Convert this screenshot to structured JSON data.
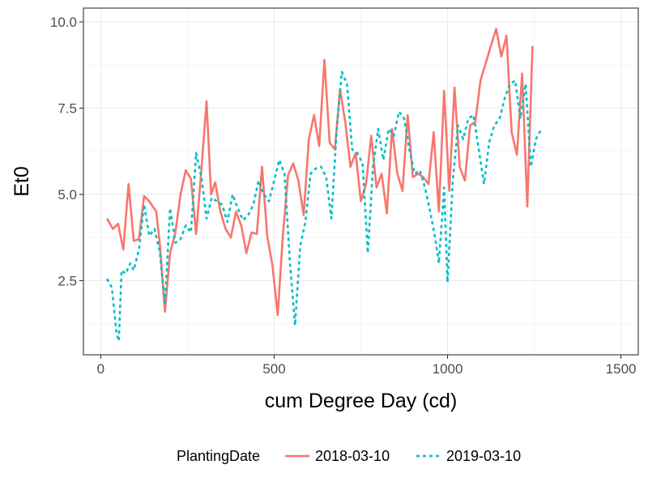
{
  "chart_data": {
    "type": "line",
    "xlabel": "cum Degree Day (cd)",
    "ylabel": "Et0",
    "xlim": [
      -50,
      1550
    ],
    "ylim": [
      0.35,
      10.4
    ],
    "x_ticks": [
      0,
      500,
      1000,
      1500
    ],
    "x_tick_labels": [
      "0",
      "500",
      "1000",
      "1500"
    ],
    "y_ticks": [
      2.5,
      5.0,
      7.5,
      10.0
    ],
    "y_tick_labels": [
      "2.5",
      "5.0",
      "7.5",
      "10.0"
    ],
    "grid": true,
    "legend": {
      "title": "PlantingDate",
      "position": "bottom"
    },
    "series": [
      {
        "name": "2018-03-10",
        "color": "#f8766d",
        "style": "solid",
        "points": [
          [
            18,
            4.3
          ],
          [
            35,
            4.0
          ],
          [
            50,
            4.15
          ],
          [
            65,
            3.4
          ],
          [
            80,
            5.3
          ],
          [
            95,
            3.65
          ],
          [
            110,
            3.7
          ],
          [
            125,
            4.95
          ],
          [
            140,
            4.8
          ],
          [
            160,
            4.5
          ],
          [
            170,
            3.6
          ],
          [
            185,
            1.6
          ],
          [
            200,
            3.3
          ],
          [
            215,
            3.9
          ],
          [
            230,
            5.0
          ],
          [
            245,
            5.7
          ],
          [
            260,
            5.45
          ],
          [
            275,
            3.85
          ],
          [
            290,
            5.7
          ],
          [
            305,
            7.7
          ],
          [
            318,
            5.0
          ],
          [
            330,
            5.35
          ],
          [
            345,
            4.5
          ],
          [
            360,
            4.0
          ],
          [
            375,
            3.75
          ],
          [
            390,
            4.5
          ],
          [
            405,
            4.1
          ],
          [
            420,
            3.3
          ],
          [
            435,
            3.9
          ],
          [
            450,
            3.85
          ],
          [
            465,
            5.8
          ],
          [
            480,
            3.8
          ],
          [
            495,
            2.95
          ],
          [
            510,
            1.5
          ],
          [
            525,
            3.8
          ],
          [
            540,
            5.55
          ],
          [
            555,
            5.9
          ],
          [
            570,
            5.4
          ],
          [
            585,
            4.4
          ],
          [
            600,
            6.6
          ],
          [
            615,
            7.3
          ],
          [
            630,
            6.4
          ],
          [
            645,
            8.9
          ],
          [
            660,
            6.5
          ],
          [
            675,
            6.3
          ],
          [
            690,
            8.05
          ],
          [
            705,
            7.1
          ],
          [
            720,
            5.8
          ],
          [
            735,
            6.2
          ],
          [
            750,
            4.8
          ],
          [
            765,
            5.3
          ],
          [
            780,
            6.7
          ],
          [
            795,
            5.2
          ],
          [
            810,
            5.6
          ],
          [
            825,
            4.45
          ],
          [
            840,
            6.9
          ],
          [
            855,
            5.6
          ],
          [
            870,
            5.1
          ],
          [
            885,
            7.3
          ],
          [
            900,
            5.5
          ],
          [
            915,
            5.6
          ],
          [
            930,
            5.5
          ],
          [
            945,
            5.3
          ],
          [
            960,
            6.8
          ],
          [
            975,
            4.5
          ],
          [
            990,
            8.0
          ],
          [
            1005,
            5.1
          ],
          [
            1020,
            8.1
          ],
          [
            1035,
            5.8
          ],
          [
            1050,
            5.4
          ],
          [
            1065,
            7.0
          ],
          [
            1080,
            7.1
          ],
          [
            1095,
            8.3
          ],
          [
            1110,
            8.8
          ],
          [
            1125,
            9.3
          ],
          [
            1140,
            9.8
          ],
          [
            1155,
            9.0
          ],
          [
            1170,
            9.6
          ],
          [
            1185,
            6.8
          ],
          [
            1200,
            6.15
          ],
          [
            1215,
            8.5
          ],
          [
            1230,
            4.65
          ],
          [
            1245,
            9.3
          ]
        ]
      },
      {
        "name": "2019-03-10",
        "color": "#00bfc4",
        "style": "dashed",
        "points": [
          [
            18,
            2.55
          ],
          [
            32,
            2.3
          ],
          [
            45,
            1.0
          ],
          [
            52,
            0.75
          ],
          [
            60,
            2.8
          ],
          [
            72,
            2.7
          ],
          [
            85,
            3.0
          ],
          [
            95,
            2.8
          ],
          [
            110,
            3.4
          ],
          [
            125,
            4.7
          ],
          [
            140,
            3.8
          ],
          [
            155,
            4.0
          ],
          [
            170,
            3.35
          ],
          [
            185,
            1.8
          ],
          [
            200,
            4.6
          ],
          [
            215,
            3.6
          ],
          [
            230,
            3.7
          ],
          [
            245,
            4.1
          ],
          [
            260,
            3.9
          ],
          [
            275,
            6.2
          ],
          [
            290,
            5.5
          ],
          [
            305,
            4.3
          ],
          [
            320,
            4.9
          ],
          [
            335,
            4.8
          ],
          [
            350,
            4.7
          ],
          [
            365,
            4.2
          ],
          [
            380,
            5.0
          ],
          [
            395,
            4.6
          ],
          [
            410,
            4.25
          ],
          [
            425,
            4.4
          ],
          [
            440,
            4.7
          ],
          [
            455,
            5.4
          ],
          [
            470,
            5.0
          ],
          [
            485,
            4.8
          ],
          [
            500,
            5.4
          ],
          [
            515,
            6.0
          ],
          [
            530,
            5.6
          ],
          [
            545,
            3.1
          ],
          [
            560,
            1.2
          ],
          [
            575,
            3.5
          ],
          [
            590,
            4.2
          ],
          [
            605,
            5.6
          ],
          [
            620,
            5.75
          ],
          [
            635,
            5.8
          ],
          [
            650,
            5.5
          ],
          [
            665,
            4.3
          ],
          [
            680,
            6.8
          ],
          [
            695,
            8.55
          ],
          [
            710,
            8.2
          ],
          [
            725,
            6.3
          ],
          [
            740,
            6.2
          ],
          [
            755,
            5.9
          ],
          [
            770,
            3.3
          ],
          [
            785,
            5.8
          ],
          [
            800,
            6.9
          ],
          [
            815,
            6.0
          ],
          [
            830,
            6.9
          ],
          [
            845,
            6.7
          ],
          [
            860,
            7.4
          ],
          [
            875,
            7.2
          ],
          [
            890,
            6.3
          ],
          [
            905,
            5.6
          ],
          [
            920,
            5.7
          ],
          [
            935,
            5.2
          ],
          [
            950,
            4.5
          ],
          [
            965,
            3.7
          ],
          [
            975,
            3.0
          ],
          [
            990,
            5.2
          ],
          [
            1000,
            2.45
          ],
          [
            1015,
            5.4
          ],
          [
            1030,
            7.0
          ],
          [
            1045,
            6.6
          ],
          [
            1060,
            7.2
          ],
          [
            1075,
            7.3
          ],
          [
            1090,
            6.3
          ],
          [
            1105,
            5.3
          ],
          [
            1120,
            6.5
          ],
          [
            1135,
            7.0
          ],
          [
            1150,
            7.2
          ],
          [
            1165,
            7.8
          ],
          [
            1180,
            8.2
          ],
          [
            1195,
            8.3
          ],
          [
            1210,
            7.2
          ],
          [
            1225,
            8.2
          ],
          [
            1240,
            5.8
          ],
          [
            1255,
            6.6
          ],
          [
            1265,
            6.8
          ],
          [
            1275,
            6.9
          ]
        ]
      }
    ]
  }
}
